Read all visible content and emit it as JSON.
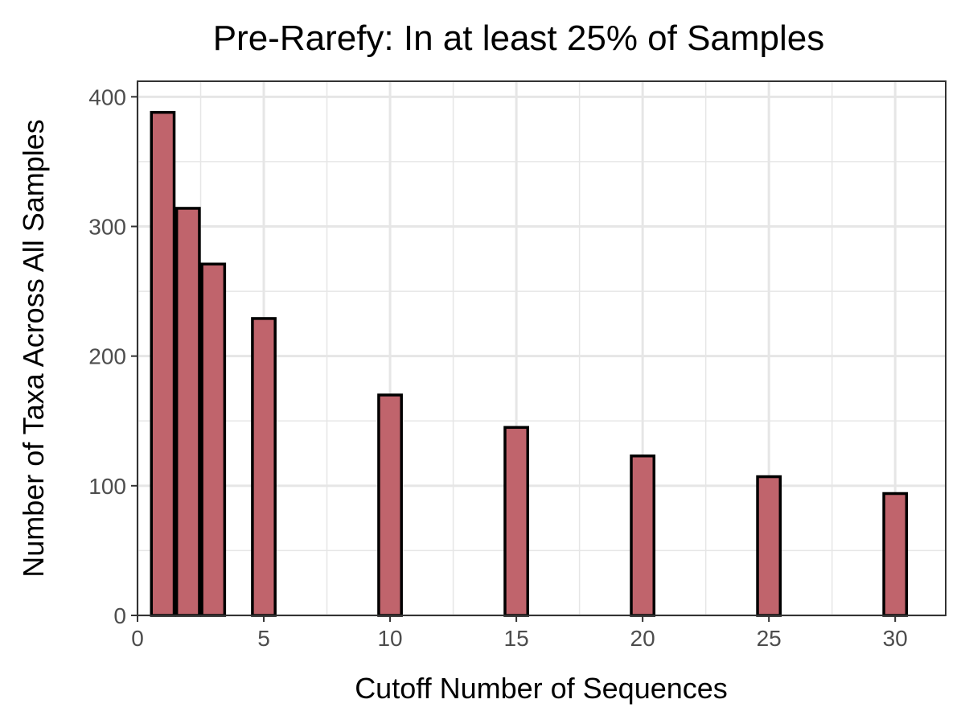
{
  "chart_data": {
    "type": "bar",
    "title": "Pre-Rarefy: In at least 25% of Samples",
    "xlabel": "Cutoff Number of Sequences",
    "ylabel": "Number of Taxa Across All Samples",
    "x": [
      1,
      2,
      3,
      5,
      10,
      15,
      20,
      25,
      30
    ],
    "values": [
      388,
      314,
      271,
      229,
      170,
      145,
      123,
      107,
      94
    ],
    "xlim": [
      0,
      32
    ],
    "ylim": [
      0,
      412
    ],
    "x_ticks": [
      0,
      5,
      10,
      15,
      20,
      25,
      30
    ],
    "x_tick_labels": [
      "0",
      "5",
      "10",
      "15",
      "20",
      "25",
      "30"
    ],
    "y_ticks": [
      0,
      100,
      200,
      300,
      400
    ],
    "y_tick_labels": [
      "0",
      "100",
      "200",
      "300",
      "400"
    ],
    "grid": true,
    "bar_fill": "#c0646c",
    "bar_stroke": "#000000",
    "panel_border": "#333333",
    "grid_color": "#e6e6e6"
  }
}
